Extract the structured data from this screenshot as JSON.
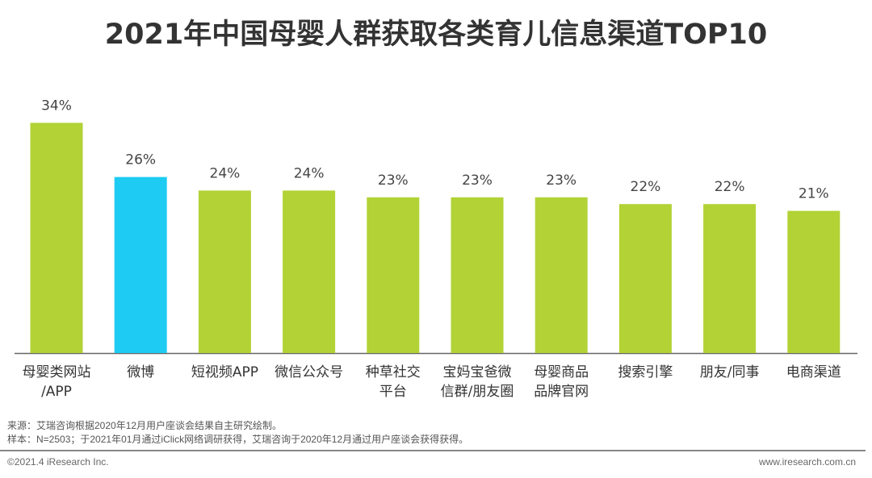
{
  "chart_data": {
    "type": "bar",
    "title": "2021年中国母婴人群获取各类育儿信息渠道TOP10",
    "categories": [
      "母婴类网站\n/APP",
      "微博",
      "短视频APP",
      "微信公众号",
      "种草社交\n平台",
      "宝妈宝爸微\n信群/朋友圈",
      "母婴商品\n品牌官网",
      "搜索引擎",
      "朋友/同事",
      "电商渠道"
    ],
    "values": [
      34,
      26,
      24,
      24,
      23,
      23,
      23,
      22,
      22,
      21
    ],
    "data_labels": [
      "34%",
      "26%",
      "24%",
      "24%",
      "23%",
      "23%",
      "23%",
      "22%",
      "22%",
      "21%"
    ],
    "highlight_index": 1,
    "colors": {
      "default": "#b2d235",
      "highlight": "#1ecbf2"
    },
    "unit": "%",
    "ylim": [
      0,
      36
    ],
    "grid": false
  },
  "footer": {
    "source": "来源：艾瑞咨询根据2020年12月用户座谈会结果自主研究绘制。",
    "sample": "样本：N=2503；于2021年01月通过iClick网络调研获得，艾瑞咨询于2020年12月通过用户座谈会获得获得。",
    "copyright": "©2021.4 iResearch Inc.",
    "website": "www.iresearch.com.cn"
  }
}
